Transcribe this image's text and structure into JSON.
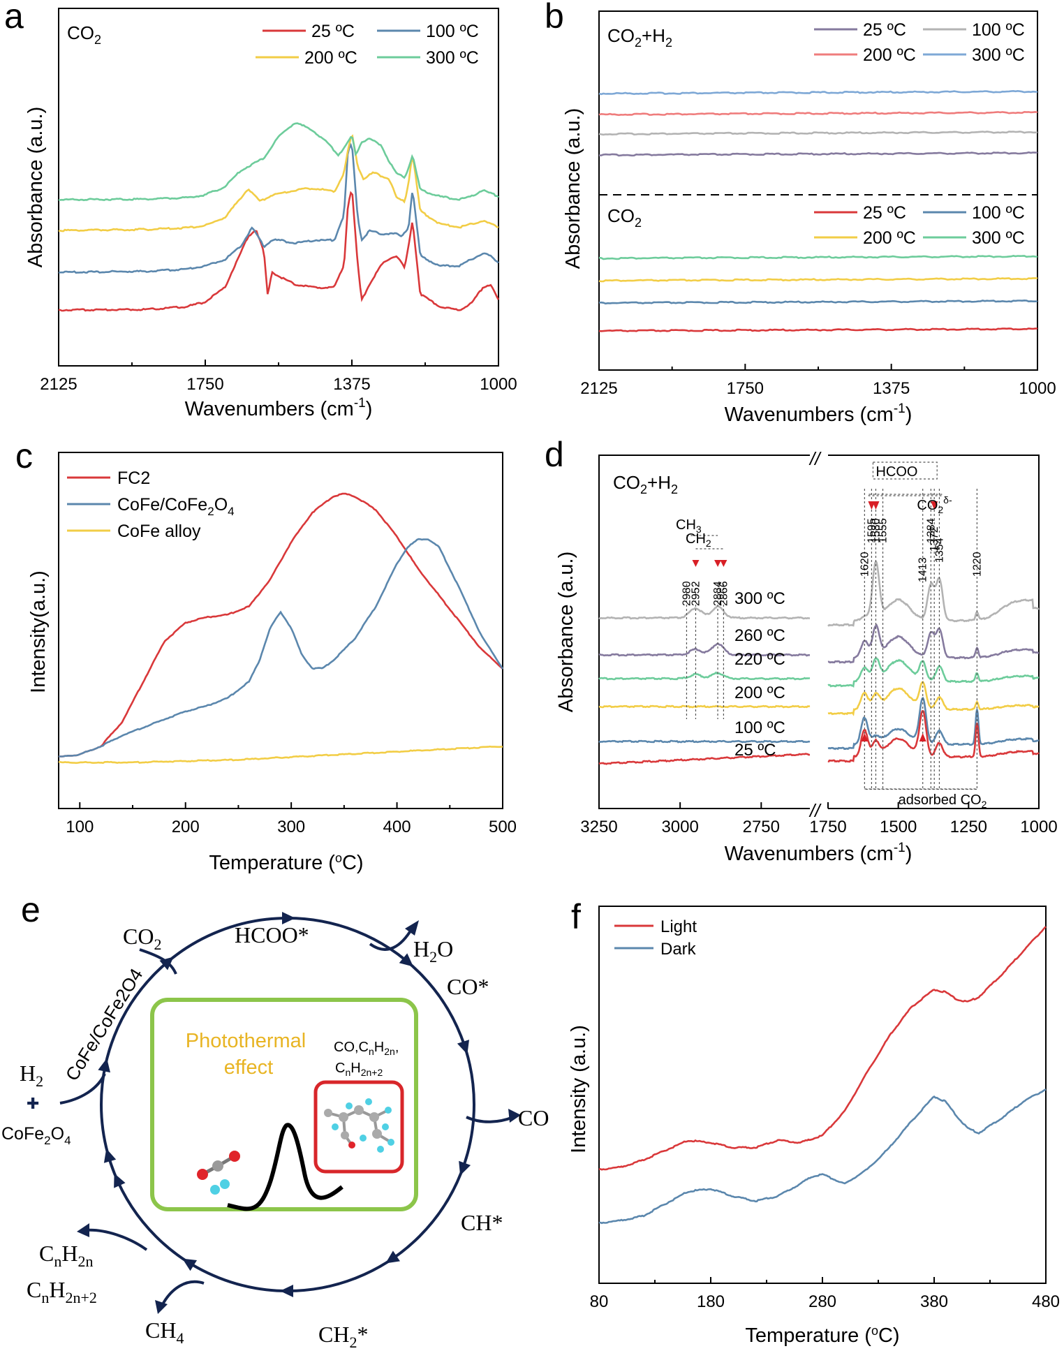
{
  "colors": {
    "red": "#d9383a",
    "blue": "#5b87ad",
    "yellow": "#f2cd46",
    "green": "#6dcc9b",
    "purple": "#857a9e",
    "gray": "#b3b3b3",
    "pink": "#ef7c7c",
    "lightblue": "#7ea8d6",
    "navy": "#13244f",
    "frame_green": "#8cc54a",
    "frame_red": "#d8262a",
    "orange_text": "#e8b423",
    "arrow_red": "#d81f26"
  },
  "chart_data": [
    {
      "panel": "a",
      "type": "line",
      "label": "CO2",
      "xlabel": "Wavenumbers (cm-1)",
      "ylabel": "Absorbance (a.u.)",
      "xlim": [
        2125,
        1000
      ],
      "x_reversed": true,
      "xticks": [
        "2125",
        "1750",
        "1375",
        "1000"
      ],
      "legend": [
        {
          "name": "25 ºC",
          "color": "red"
        },
        {
          "name": "100 ºC",
          "color": "blue"
        },
        {
          "name": "200 ºC",
          "color": "yellow"
        },
        {
          "name": "300 ºC",
          "color": "green"
        }
      ],
      "series": [
        {
          "name": "25 ºC",
          "color": "red",
          "x": [
            2125,
            1900,
            1800,
            1750,
            1700,
            1640,
            1620,
            1600,
            1590,
            1580,
            1570,
            1520,
            1470,
            1420,
            1395,
            1385,
            1375,
            1360,
            1350,
            1330,
            1300,
            1280,
            1260,
            1250,
            1240,
            1230,
            1220,
            1200,
            1150,
            1100,
            1070,
            1040,
            1020,
            1000
          ],
          "y": [
            0,
            0.2,
            1,
            2.5,
            7,
            23,
            25,
            18,
            4,
            12,
            11,
            8,
            7,
            7,
            14,
            33,
            38,
            14,
            3,
            8,
            14,
            16,
            17,
            15,
            13,
            20,
            28,
            5,
            1,
            0,
            2,
            7,
            8,
            3
          ]
        },
        {
          "name": "100 ºC",
          "color": "blue",
          "x": [
            2125,
            1900,
            1800,
            1750,
            1700,
            1660,
            1630,
            1615,
            1600,
            1580,
            1560,
            1520,
            1470,
            1420,
            1395,
            1385,
            1375,
            1360,
            1350,
            1330,
            1300,
            1280,
            1260,
            1250,
            1230,
            1220,
            1200,
            1150,
            1100,
            1070,
            1040,
            1020,
            1000
          ],
          "y": [
            0,
            0.3,
            1,
            2,
            4,
            8,
            14,
            11,
            8,
            10,
            10,
            9,
            10,
            10,
            18,
            38,
            40,
            17,
            10,
            13,
            12,
            12,
            12,
            11,
            14,
            26,
            5,
            2,
            2,
            4,
            6,
            5,
            3
          ]
        },
        {
          "name": "200 ºC",
          "color": "yellow",
          "x": [
            2125,
            1900,
            1800,
            1750,
            1700,
            1660,
            1640,
            1610,
            1580,
            1540,
            1500,
            1460,
            1420,
            1395,
            1385,
            1375,
            1360,
            1345,
            1320,
            1300,
            1280,
            1260,
            1240,
            1230,
            1220,
            1200,
            1150,
            1100,
            1070,
            1040,
            1020,
            1000
          ],
          "y": [
            0,
            0.3,
            0.8,
            1.5,
            4,
            10,
            13,
            9,
            11,
            12,
            13,
            13,
            12,
            18,
            25,
            30,
            20,
            16,
            18,
            17,
            16,
            10,
            9,
            15,
            24,
            6,
            2,
            1,
            2,
            3,
            2,
            1
          ]
        },
        {
          "name": "300 ºC",
          "color": "green",
          "x": [
            2125,
            1900,
            1800,
            1750,
            1700,
            1660,
            1630,
            1600,
            1560,
            1520,
            1480,
            1440,
            1410,
            1395,
            1385,
            1375,
            1365,
            1350,
            1330,
            1300,
            1280,
            1260,
            1240,
            1230,
            1220,
            1200,
            1150,
            1100,
            1070,
            1040,
            1020,
            1000
          ],
          "y": [
            0,
            0.2,
            0.6,
            1.5,
            4,
            9,
            11,
            13,
            20,
            24,
            22,
            18,
            14,
            16,
            18,
            20,
            14,
            18,
            19,
            17,
            12,
            8,
            7,
            10,
            14,
            3,
            1,
            0,
            1,
            3,
            2,
            1
          ]
        }
      ]
    },
    {
      "panel": "b",
      "type": "line",
      "labels": [
        "CO2+H2",
        "CO2"
      ],
      "xlabel": "Wavenumbers (cm-1)",
      "ylabel": "Absorbance (a.u.)",
      "xlim": [
        2125,
        1000
      ],
      "x_reversed": true,
      "xticks": [
        "2125",
        "1750",
        "1375",
        "1000"
      ],
      "legend_top": [
        {
          "name": "25 ºC",
          "color": "purple"
        },
        {
          "name": "100 ºC",
          "color": "gray"
        },
        {
          "name": "200 ºC",
          "color": "pink"
        },
        {
          "name": "300 ºC",
          "color": "lightblue"
        }
      ],
      "legend_bottom": [
        {
          "name": "25 ºC",
          "color": "red"
        },
        {
          "name": "100 ºC",
          "color": "blue"
        },
        {
          "name": "200 ºC",
          "color": "yellow"
        },
        {
          "name": "300 ºC",
          "color": "green"
        }
      ]
    },
    {
      "panel": "c",
      "type": "line",
      "xlabel": "Temperature (ºC)",
      "ylabel": "Intensity(a.u.)",
      "xlim": [
        80,
        500
      ],
      "xticks": [
        "100",
        "200",
        "300",
        "400",
        "500"
      ],
      "legend": [
        {
          "name": "FC2",
          "color": "red"
        },
        {
          "name": "CoFe/CoFe2O4",
          "color": "blue"
        },
        {
          "name": "CoFe alloy",
          "color": "yellow"
        }
      ],
      "series": [
        {
          "name": "FC2",
          "color": "red",
          "x": [
            80,
            100,
            120,
            140,
            160,
            180,
            200,
            220,
            240,
            260,
            280,
            300,
            320,
            340,
            350,
            360,
            380,
            400,
            420,
            440,
            460,
            480,
            500
          ],
          "y": [
            0.02,
            0.03,
            0.06,
            0.15,
            0.3,
            0.45,
            0.52,
            0.54,
            0.55,
            0.58,
            0.68,
            0.82,
            0.93,
            0.99,
            1.0,
            0.99,
            0.94,
            0.84,
            0.72,
            0.62,
            0.52,
            0.42,
            0.35
          ]
        },
        {
          "name": "CoFe/CoFe2O4",
          "color": "blue",
          "x": [
            80,
            100,
            120,
            140,
            160,
            180,
            200,
            220,
            240,
            260,
            270,
            280,
            290,
            300,
            310,
            320,
            330,
            340,
            360,
            380,
            400,
            410,
            420,
            430,
            440,
            460,
            480,
            500
          ],
          "y": [
            0.02,
            0.03,
            0.06,
            0.1,
            0.13,
            0.16,
            0.19,
            0.21,
            0.24,
            0.3,
            0.38,
            0.5,
            0.56,
            0.5,
            0.4,
            0.35,
            0.35,
            0.38,
            0.46,
            0.58,
            0.74,
            0.8,
            0.83,
            0.83,
            0.8,
            0.64,
            0.47,
            0.35
          ]
        },
        {
          "name": "CoFe alloy",
          "color": "yellow",
          "x": [
            80,
            100,
            150,
            200,
            250,
            300,
            350,
            400,
            450,
            500
          ],
          "y": [
            0.0,
            0.0,
            0.0,
            0.005,
            0.01,
            0.02,
            0.03,
            0.04,
            0.05,
            0.06
          ]
        }
      ]
    },
    {
      "panel": "d",
      "type": "line",
      "label": "CO2+H2",
      "xlabel": "Wavenumbers (cm-1)",
      "ylabel": "Absorbance (a.u.)",
      "xticks": [
        "3250",
        "3000",
        "2750",
        "1750",
        "1500",
        "1250",
        "1000"
      ],
      "axis_break": "//",
      "series_labels": [
        "300 ºC",
        "260 ºC",
        "220 ºC",
        "200 ºC",
        "100 ºC",
        "25 ºC"
      ],
      "peak_labels": [
        "2980",
        "2952",
        "2884",
        "2866",
        "1620",
        "1595",
        "1580",
        "1555",
        "1413",
        "1384",
        "1372",
        "1354",
        "1220"
      ],
      "group_labels": [
        "CH3",
        "CH2",
        "HCOO",
        "CO2δ-",
        "adsorbed CO2"
      ]
    },
    {
      "panel": "f",
      "type": "line",
      "xlabel": "Temperature (ºC)",
      "ylabel": "Intensity (a.u.)",
      "xlim": [
        80,
        480
      ],
      "xticks": [
        "80",
        "180",
        "280",
        "380",
        "480"
      ],
      "legend": [
        {
          "name": "Light",
          "color": "red"
        },
        {
          "name": "Dark",
          "color": "blue"
        }
      ],
      "series": [
        {
          "name": "Light",
          "color": "red",
          "x": [
            80,
            100,
            120,
            140,
            160,
            180,
            200,
            220,
            240,
            260,
            280,
            300,
            320,
            340,
            360,
            380,
            390,
            400,
            410,
            420,
            440,
            460,
            480
          ],
          "y": [
            0.0,
            0.01,
            0.04,
            0.08,
            0.12,
            0.11,
            0.09,
            0.09,
            0.12,
            0.11,
            0.14,
            0.24,
            0.4,
            0.55,
            0.67,
            0.74,
            0.73,
            0.7,
            0.69,
            0.71,
            0.8,
            0.9,
            1.0
          ]
        },
        {
          "name": "Dark",
          "color": "blue",
          "x": [
            80,
            100,
            120,
            140,
            160,
            180,
            200,
            220,
            240,
            260,
            270,
            280,
            290,
            300,
            320,
            340,
            360,
            380,
            390,
            400,
            410,
            420,
            440,
            460,
            480
          ],
          "y": [
            -0.22,
            -0.21,
            -0.19,
            -0.14,
            -0.09,
            -0.08,
            -0.11,
            -0.13,
            -0.11,
            -0.06,
            -0.03,
            -0.02,
            -0.04,
            -0.06,
            0.0,
            0.09,
            0.2,
            0.3,
            0.28,
            0.22,
            0.17,
            0.15,
            0.21,
            0.28,
            0.33
          ]
        }
      ]
    }
  ],
  "panels": {
    "a": {
      "letter": "a",
      "inner_label": "CO",
      "inner_sub": "2"
    },
    "b": {
      "letter": "b",
      "top_label": "CO",
      "top_sub": "2",
      "top_suffix": "+H",
      "top_sub2": "2",
      "bottom_label": "CO",
      "bottom_sub": "2"
    },
    "c": {
      "letter": "c"
    },
    "d": {
      "letter": "d",
      "inner_label": "CO",
      "inner_sub": "2",
      "inner_suffix": "+H",
      "inner_sub2": "2",
      "break": "//"
    },
    "e": {
      "letter": "e",
      "nodes": {
        "hcoo": "HCOO*",
        "h2o_main": "H",
        "h2o_sub": "2",
        "h2o_end": "O",
        "co_star": "CO*",
        "co": "CO",
        "ch_star": "CH*",
        "ch2_main": "CH",
        "ch2_sub": "2",
        "ch2_end": "*",
        "ch4_main": "CH",
        "ch4_sub": "4",
        "co2_main": "CO",
        "co2_sub": "2",
        "cnh2n_c": "C",
        "cnh2n_n": "n",
        "cnh2n_h": "H",
        "cnh2n_2n": "2n",
        "cnh2n2_c": "C",
        "cnh2n2_n": "n",
        "cnh2n2_h": "H",
        "cnh2n2_2n2": "2n+2",
        "h2_main": "H",
        "h2_sub": "2",
        "plus": "✚",
        "cofe2o4_a": "CoFe",
        "cofe2o4_b": "2",
        "cofe2o4_c": "O",
        "cofe2o4_d": "4",
        "arc_label": "CoFe/CoFe2O4"
      },
      "inset": {
        "title1": "Photothermal",
        "title2": "effect",
        "products1": "CO,C",
        "products1_n": "n",
        "products1_h": "H",
        "products1_2n": "2n",
        "products1_end": ",",
        "products2": "C",
        "products2_n": "n",
        "products2_h": "H",
        "products2_2n2": "2n+2"
      }
    },
    "f": {
      "letter": "f"
    }
  }
}
